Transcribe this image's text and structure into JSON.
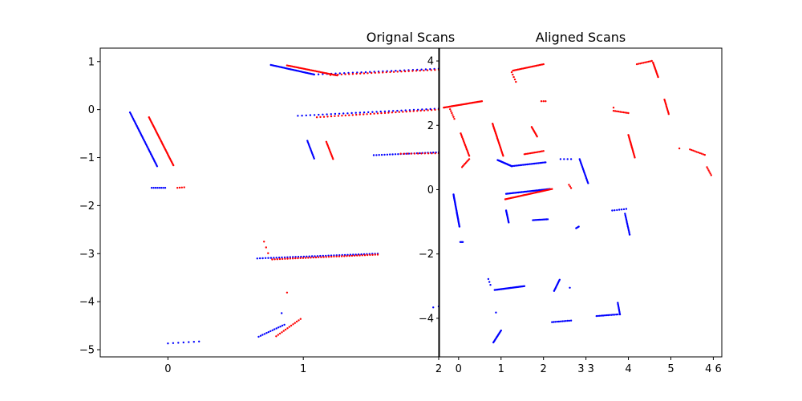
{
  "chart_data": [
    {
      "type": "scatter",
      "title": "Orignal Scans",
      "xlim": [
        -0.5,
        2.0
      ],
      "ylim": [
        -5.15,
        1.28
      ],
      "xticks": [
        0,
        1,
        2
      ],
      "yticks": [
        1,
        0,
        -1,
        -2,
        -3,
        -4,
        -5
      ],
      "grid": false,
      "series": [
        {
          "color": "#0000ff",
          "segments": [
            {
              "from": [
                -0.28,
                -0.06
              ],
              "to": [
                -0.08,
                -1.18
              ],
              "n": 45
            },
            {
              "from": [
                -0.12,
                -1.63
              ],
              "to": [
                -0.02,
                -1.63
              ],
              "n": 8
            },
            {
              "from": [
                0.76,
                0.93
              ],
              "to": [
                1.08,
                0.73
              ],
              "n": 40
            },
            {
              "from": [
                1.08,
                0.73
              ],
              "to": [
                2.0,
                0.85
              ],
              "n": 30
            },
            {
              "from": [
                0.96,
                -0.13
              ],
              "to": [
                2.0,
                0.02
              ],
              "n": 35
            },
            {
              "from": [
                1.03,
                -0.65
              ],
              "to": [
                1.08,
                -1.02
              ],
              "n": 14
            },
            {
              "from": [
                1.52,
                -0.95
              ],
              "to": [
                2.0,
                -0.89
              ],
              "n": 25
            },
            {
              "from": [
                0.66,
                -3.1
              ],
              "to": [
                1.55,
                -3.0
              ],
              "n": 45
            },
            {
              "from": [
                0.0,
                -4.87
              ],
              "to": [
                0.23,
                -4.83
              ],
              "n": 7
            },
            {
              "from": [
                0.67,
                -4.73
              ],
              "to": [
                0.86,
                -4.48
              ],
              "n": 14
            },
            {
              "from": [
                0.84,
                -4.24
              ],
              "to": [
                0.84,
                -4.24
              ],
              "n": 1
            },
            {
              "from": [
                1.96,
                -4.12
              ],
              "to": [
                2.0,
                -4.1
              ],
              "n": 2
            }
          ]
        },
        {
          "color": "#ff0000",
          "segments": [
            {
              "from": [
                -0.14,
                -0.16
              ],
              "to": [
                0.04,
                -1.16
              ],
              "n": 45
            },
            {
              "from": [
                0.07,
                -1.63
              ],
              "to": [
                0.12,
                -1.62
              ],
              "n": 4
            },
            {
              "from": [
                0.88,
                0.92
              ],
              "to": [
                1.25,
                0.71
              ],
              "n": 40
            },
            {
              "from": [
                1.2,
                0.72
              ],
              "to": [
                2.0,
                0.83
              ],
              "n": 30
            },
            {
              "from": [
                1.1,
                -0.16
              ],
              "to": [
                2.0,
                0.0
              ],
              "n": 35
            },
            {
              "from": [
                1.17,
                -0.67
              ],
              "to": [
                1.22,
                -1.03
              ],
              "n": 14
            },
            {
              "from": [
                1.72,
                -0.92
              ],
              "to": [
                2.0,
                -0.91
              ],
              "n": 12
            },
            {
              "from": [
                0.77,
                -3.12
              ],
              "to": [
                1.55,
                -3.02
              ],
              "n": 42
            },
            {
              "from": [
                0.71,
                -2.75
              ],
              "to": [
                0.74,
                -2.99
              ],
              "n": 3
            },
            {
              "from": [
                0.88,
                -3.81
              ],
              "to": [
                0.88,
                -3.81
              ],
              "n": 1
            },
            {
              "from": [
                0.8,
                -4.72
              ],
              "to": [
                0.98,
                -4.36
              ],
              "n": 14
            }
          ]
        }
      ]
    },
    {
      "type": "scatter",
      "title": "Aligned Scans",
      "xlim": [
        -0.45,
        6.2
      ],
      "ylim": [
        -5.2,
        4.4
      ],
      "xticks": [
        0,
        1,
        2,
        3,
        4,
        5,
        6
      ],
      "yticks": [
        4,
        2,
        0,
        -2,
        -4
      ],
      "xtick_labels": [
        "0",
        "1",
        "2",
        "3 3",
        "4",
        "5",
        "4 6"
      ],
      "grid": false,
      "series": [
        {
          "color": "#0000ff",
          "segments": [
            {
              "from": [
                -0.12,
                -0.15
              ],
              "to": [
                0.02,
                -1.15
              ],
              "n": 40
            },
            {
              "from": [
                0.04,
                -1.63
              ],
              "to": [
                0.1,
                -1.63
              ],
              "n": 4
            },
            {
              "from": [
                0.92,
                0.92
              ],
              "to": [
                1.25,
                0.73
              ],
              "n": 25
            },
            {
              "from": [
                1.25,
                0.73
              ],
              "to": [
                2.05,
                0.85
              ],
              "n": 25
            },
            {
              "from": [
                2.4,
                0.95
              ],
              "to": [
                2.65,
                0.95
              ],
              "n": 4
            },
            {
              "from": [
                2.85,
                0.95
              ],
              "to": [
                3.05,
                0.2
              ],
              "n": 20
            },
            {
              "from": [
                1.12,
                -0.13
              ],
              "to": [
                2.15,
                0.02
              ],
              "n": 40
            },
            {
              "from": [
                1.12,
                -0.65
              ],
              "to": [
                1.18,
                -1.02
              ],
              "n": 14
            },
            {
              "from": [
                1.75,
                -0.95
              ],
              "to": [
                2.1,
                -0.92
              ],
              "n": 12
            },
            {
              "from": [
                2.77,
                -1.2
              ],
              "to": [
                2.83,
                -1.15
              ],
              "n": 4
            },
            {
              "from": [
                3.62,
                -0.65
              ],
              "to": [
                3.95,
                -0.6
              ],
              "n": 7
            },
            {
              "from": [
                3.92,
                -0.75
              ],
              "to": [
                4.03,
                -1.4
              ],
              "n": 16
            },
            {
              "from": [
                0.85,
                -3.12
              ],
              "to": [
                1.55,
                -3.0
              ],
              "n": 35
            },
            {
              "from": [
                0.7,
                -2.78
              ],
              "to": [
                0.75,
                -2.96
              ],
              "n": 3
            },
            {
              "from": [
                2.25,
                -3.15
              ],
              "to": [
                2.38,
                -2.8
              ],
              "n": 12
            },
            {
              "from": [
                2.62,
                -3.05
              ],
              "to": [
                2.62,
                -3.05
              ],
              "n": 1
            },
            {
              "from": [
                2.2,
                -4.12
              ],
              "to": [
                2.65,
                -4.07
              ],
              "n": 12
            },
            {
              "from": [
                0.82,
                -4.75
              ],
              "to": [
                1.0,
                -4.38
              ],
              "n": 14
            },
            {
              "from": [
                0.88,
                -3.82
              ],
              "to": [
                0.88,
                -3.82
              ],
              "n": 1
            },
            {
              "from": [
                3.25,
                -3.93
              ],
              "to": [
                3.75,
                -3.88
              ],
              "n": 14
            },
            {
              "from": [
                3.75,
                -3.52
              ],
              "to": [
                3.8,
                -3.88
              ],
              "n": 10
            }
          ]
        },
        {
          "color": "#ff0000",
          "segments": [
            {
              "from": [
                -0.35,
                2.55
              ],
              "to": [
                0.55,
                2.75
              ],
              "n": 40
            },
            {
              "from": [
                -0.2,
                2.5
              ],
              "to": [
                -0.1,
                2.2
              ],
              "n": 6
            },
            {
              "from": [
                0.05,
                1.75
              ],
              "to": [
                0.25,
                1.05
              ],
              "n": 18
            },
            {
              "from": [
                0.08,
                0.7
              ],
              "to": [
                0.25,
                0.95
              ],
              "n": 8
            },
            {
              "from": [
                1.28,
                3.7
              ],
              "to": [
                2.0,
                3.9
              ],
              "n": 25
            },
            {
              "from": [
                1.25,
                3.65
              ],
              "to": [
                1.35,
                3.35
              ],
              "n": 5
            },
            {
              "from": [
                1.95,
                2.75
              ],
              "to": [
                2.05,
                2.75
              ],
              "n": 3
            },
            {
              "from": [
                0.8,
                2.05
              ],
              "to": [
                1.05,
                1.05
              ],
              "n": 28
            },
            {
              "from": [
                1.72,
                1.95
              ],
              "to": [
                1.85,
                1.65
              ],
              "n": 10
            },
            {
              "from": [
                1.55,
                1.1
              ],
              "to": [
                2.0,
                1.2
              ],
              "n": 14
            },
            {
              "from": [
                1.1,
                -0.3
              ],
              "to": [
                2.2,
                0.02
              ],
              "n": 45
            },
            {
              "from": [
                2.6,
                0.15
              ],
              "to": [
                2.65,
                0.05
              ],
              "n": 3
            },
            {
              "from": [
                4.2,
                3.9
              ],
              "to": [
                4.55,
                4.0
              ],
              "n": 10
            },
            {
              "from": [
                4.58,
                3.95
              ],
              "to": [
                4.7,
                3.5
              ],
              "n": 14
            },
            {
              "from": [
                3.65,
                2.45
              ],
              "to": [
                4.0,
                2.38
              ],
              "n": 10
            },
            {
              "from": [
                3.65,
                2.55
              ],
              "to": [
                3.65,
                2.55
              ],
              "n": 1
            },
            {
              "from": [
                4.0,
                1.7
              ],
              "to": [
                4.15,
                1.0
              ],
              "n": 20
            },
            {
              "from": [
                4.85,
                2.8
              ],
              "to": [
                4.95,
                2.35
              ],
              "n": 12
            },
            {
              "from": [
                5.2,
                1.28
              ],
              "to": [
                5.2,
                1.28
              ],
              "n": 1
            },
            {
              "from": [
                5.45,
                1.25
              ],
              "to": [
                5.8,
                1.08
              ],
              "n": 10
            },
            {
              "from": [
                5.85,
                0.7
              ],
              "to": [
                5.95,
                0.45
              ],
              "n": 6
            }
          ]
        }
      ]
    }
  ]
}
